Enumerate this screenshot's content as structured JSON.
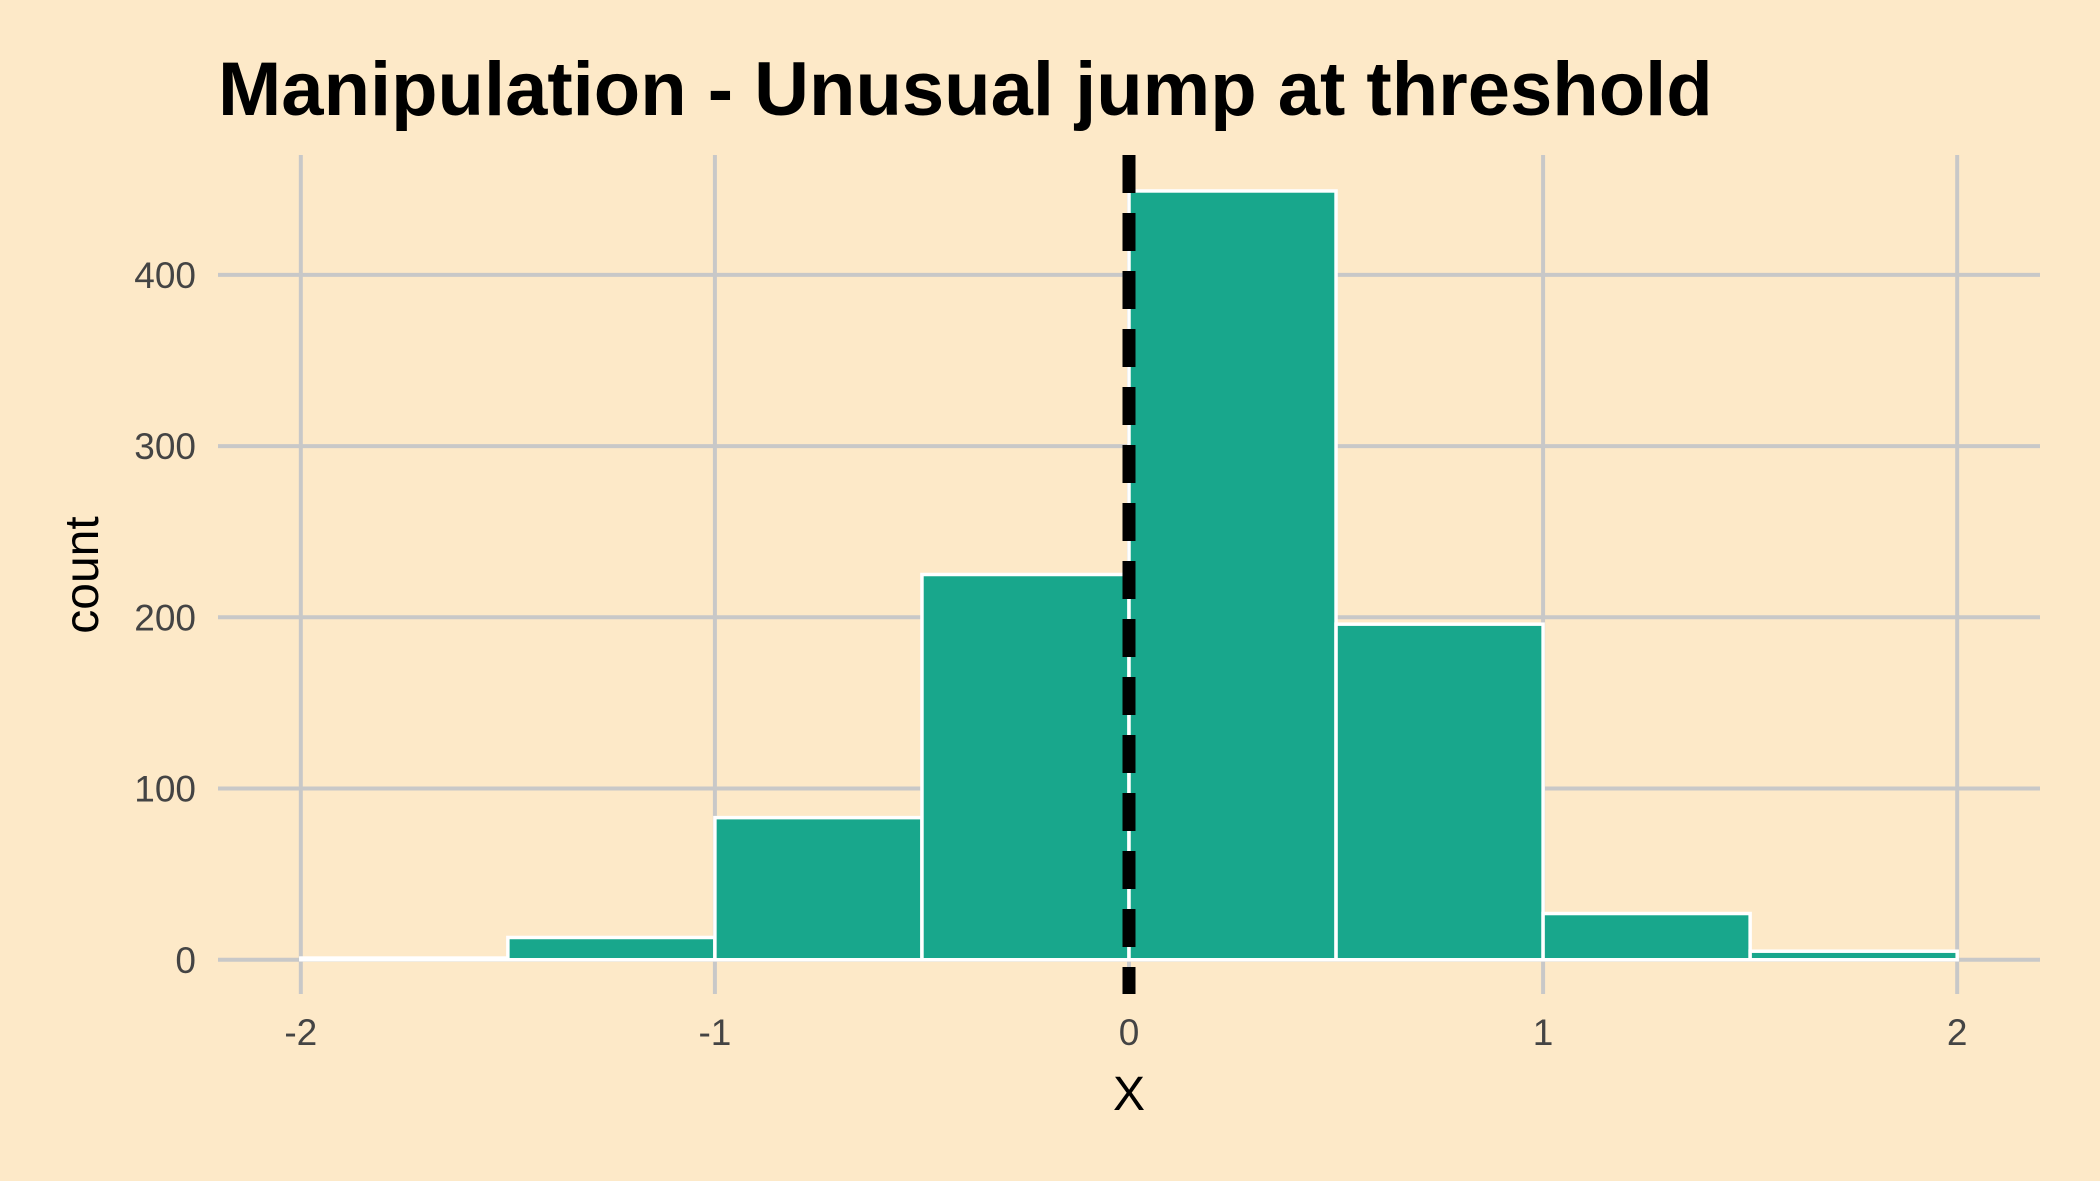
{
  "chart_data": {
    "type": "bar",
    "title": "Manipulation - Unusual jump at threshold",
    "xlabel": "X",
    "ylabel": "count",
    "xlim": [
      -2.2,
      2.2
    ],
    "ylim": [
      -20,
      470
    ],
    "x_ticks": [
      -2,
      -1,
      0,
      1,
      2
    ],
    "x_tick_labels": [
      "-2",
      "-1",
      "0",
      "1",
      "2"
    ],
    "y_ticks": [
      0,
      100,
      200,
      300,
      400
    ],
    "y_tick_labels": [
      "0",
      "100",
      "200",
      "300",
      "400"
    ],
    "grid": true,
    "bin_width": 0.5,
    "bins": [
      {
        "x0": -2.0,
        "x1": -1.5,
        "count": 1
      },
      {
        "x0": -1.5,
        "x1": -1.0,
        "count": 13
      },
      {
        "x0": -1.0,
        "x1": -0.5,
        "count": 83
      },
      {
        "x0": -0.5,
        "x1": 0.0,
        "count": 225
      },
      {
        "x0": 0.0,
        "x1": 0.5,
        "count": 449
      },
      {
        "x0": 0.5,
        "x1": 1.0,
        "count": 196
      },
      {
        "x0": 1.0,
        "x1": 1.5,
        "count": 27
      },
      {
        "x0": 1.5,
        "x1": 2.0,
        "count": 5
      }
    ],
    "threshold": 0,
    "threshold_style": "dashed",
    "colors": {
      "background": "#fde9c8",
      "bar_fill": "#18a78c",
      "bar_outline": "#ffffff",
      "grid": "#c8c8c8",
      "threshold_line": "#000000"
    }
  }
}
